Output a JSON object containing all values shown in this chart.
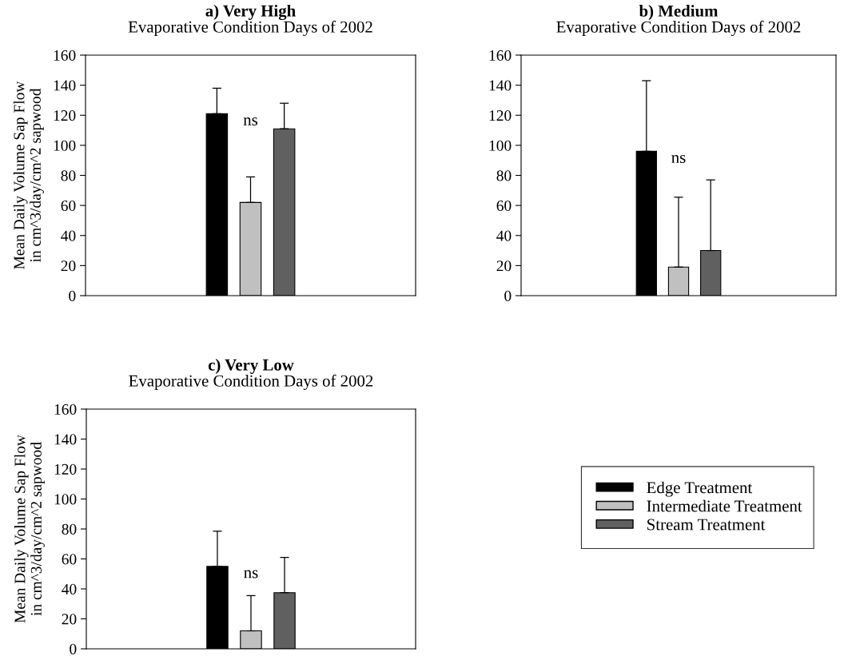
{
  "chart_data": [
    {
      "type": "bar",
      "title": "a) Very High",
      "subtitle": "Evaporative Condition Days of 2002",
      "ylabel": "Mean Daily Volume Sap Flow\nin cm^3/day/cm^2 sapwood",
      "categories": [
        null
      ],
      "ylim": [
        0,
        160
      ],
      "yticks": [
        0,
        20,
        40,
        60,
        80,
        100,
        120,
        140,
        160
      ],
      "grid": false,
      "legend": "bottom right",
      "annotations": [
        "ns"
      ],
      "series": [
        {
          "name": "Edge Treatment",
          "color": "#000000",
          "values": [
            121
          ],
          "errors": [
            [
              121,
              138
            ]
          ]
        },
        {
          "name": "Intermediate Treatment",
          "color": "#c0c0c0",
          "values": [
            62
          ],
          "errors": [
            [
              62,
              79
            ]
          ]
        },
        {
          "name": "Stream Treatment",
          "color": "#606060",
          "values": [
            111
          ],
          "errors": [
            [
              111,
              128
            ]
          ]
        }
      ]
    },
    {
      "type": "bar",
      "title": "c) Very Low",
      "subtitle": "Evaporative Condition Days of 2002",
      "ylabel": "Mean Daily Volume Sap Flow\nin cm^3/day/cm^2 sapwood",
      "categories": [
        null
      ],
      "ylim": [
        0,
        160
      ],
      "yticks": [
        0,
        20,
        40,
        60,
        80,
        100,
        120,
        140,
        160
      ],
      "grid": false,
      "annotations": [
        "ns"
      ],
      "series": [
        {
          "name": "Edge Treatment",
          "color": "#000000",
          "values": [
            55
          ],
          "errors": [
            [
              55,
              78.5
            ]
          ]
        },
        {
          "name": "Intermediate Treatment",
          "color": "#c0c0c0",
          "values": [
            12
          ],
          "errors": [
            [
              12,
              35.5
            ]
          ]
        },
        {
          "name": "Stream Treatment",
          "color": "#606060",
          "values": [
            37.5
          ],
          "errors": [
            [
              37.5,
              61
            ]
          ]
        }
      ]
    },
    {
      "type": "bar",
      "title": "b) Medium",
      "subtitle": "Evaporative Condition Days of 2002",
      "categories": [
        null
      ],
      "ylim": [
        0,
        160
      ],
      "yticks": [
        0,
        20,
        40,
        60,
        80,
        100,
        120,
        140,
        160
      ],
      "grid": false,
      "annotations": [
        "ns"
      ],
      "series": [
        {
          "name": "Edge Treatment",
          "color": "#000000",
          "values": [
            96
          ],
          "errors": [
            [
              96,
              143
            ]
          ]
        },
        {
          "name": "Intermediate Treatment",
          "color": "#c0c0c0",
          "values": [
            19
          ],
          "errors": [
            [
              19,
              65.5
            ]
          ]
        },
        {
          "name": "Stream Treatment",
          "color": "#606060",
          "values": [
            30
          ],
          "errors": [
            [
              30,
              77
            ]
          ]
        }
      ]
    }
  ]
}
